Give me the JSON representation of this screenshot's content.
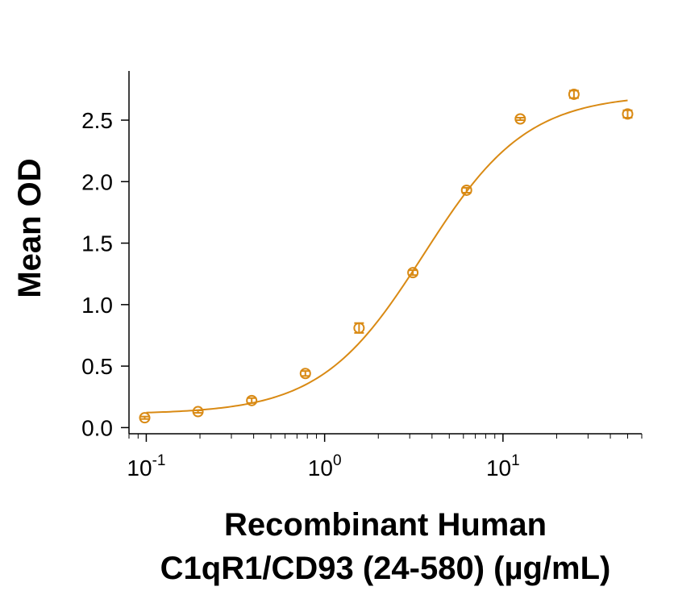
{
  "chart_data": {
    "type": "scatter",
    "x_scale": "log",
    "xlabel_lines": [
      "Recombinant Human",
      "C1qR1/CD93 (24-580) (µg/mL)"
    ],
    "ylabel": "Mean OD",
    "xlim": [
      0.08,
      60
    ],
    "ylim": [
      -0.05,
      2.9
    ],
    "y_ticks": [
      "0.0",
      "0.5",
      "1.0",
      "1.5",
      "2.0",
      "2.5"
    ],
    "x_ticks": [
      {
        "value": 0.1,
        "base": "10",
        "exp": "-1"
      },
      {
        "value": 1,
        "base": "10",
        "exp": "0"
      },
      {
        "value": 10,
        "base": "10",
        "exp": "1"
      }
    ],
    "color": "#D98A14",
    "grid": false,
    "series": [
      {
        "x": [
          0.098,
          0.195,
          0.39,
          0.78,
          1.56,
          3.125,
          6.25,
          12.5,
          25,
          50
        ],
        "y": [
          0.08,
          0.13,
          0.22,
          0.44,
          0.81,
          1.26,
          1.93,
          2.51,
          2.71,
          2.55
        ],
        "err": [
          0.01,
          0.01,
          0.02,
          0.02,
          0.04,
          0.02,
          0.02,
          0.01,
          0.03,
          0.03
        ]
      }
    ],
    "fit": {
      "model": "4PL",
      "bottom": 0.11,
      "top": 2.71,
      "ec50": 3.6,
      "hill": 1.5
    }
  }
}
